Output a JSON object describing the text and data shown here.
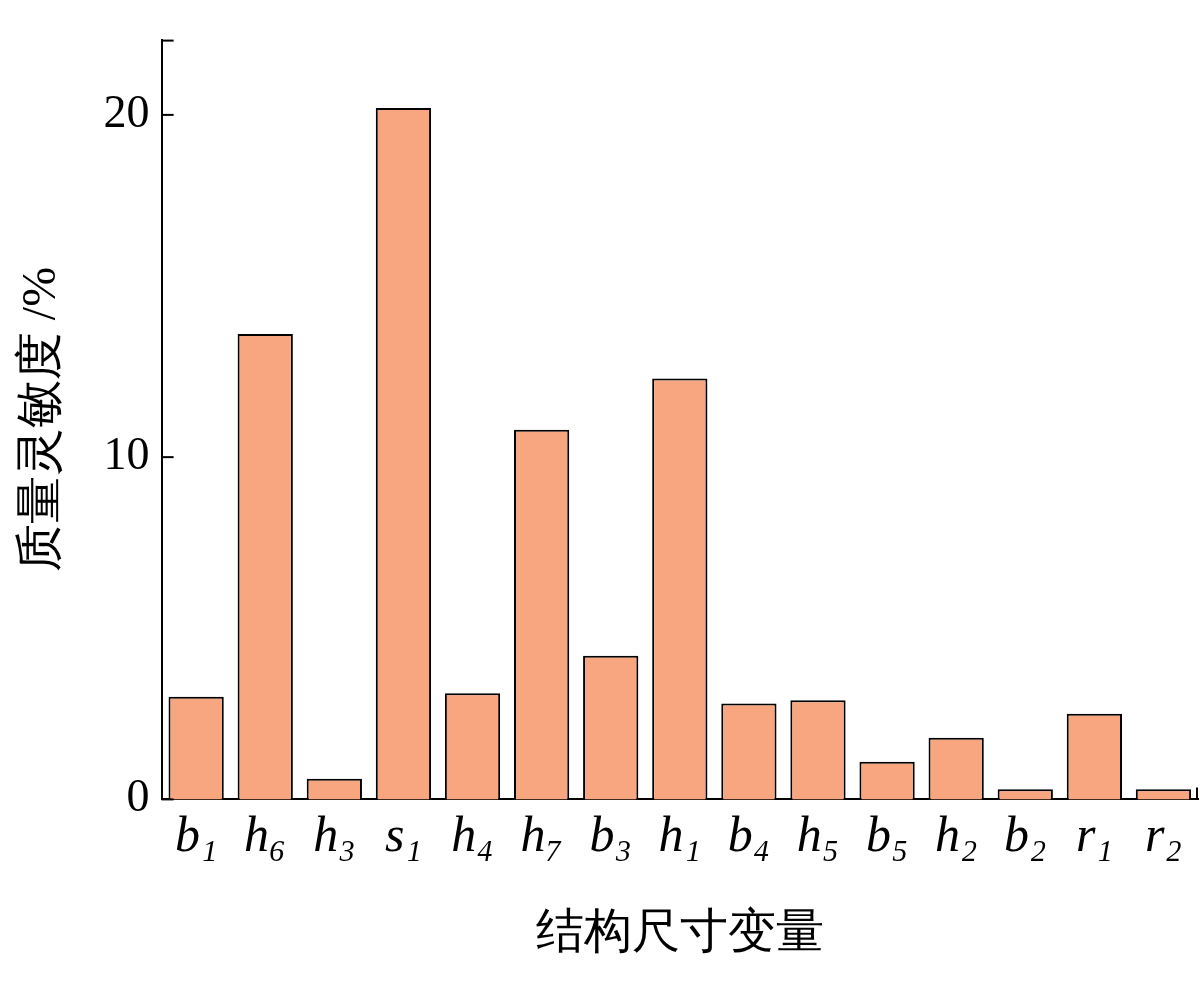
{
  "chart_data": {
    "type": "bar",
    "xlabel": "结构尺寸变量",
    "ylabel": "质量灵敏度 /%",
    "categories": [
      "b₁",
      "h₆",
      "h₃",
      "s₁",
      "h₄",
      "h₇",
      "b₃",
      "h₁",
      "b₄",
      "h₅",
      "b₅",
      "h₂",
      "b₂",
      "r₁",
      "r₂"
    ],
    "values": [
      3.0,
      13.6,
      0.6,
      20.2,
      3.1,
      10.8,
      4.2,
      12.3,
      2.8,
      2.9,
      1.1,
      1.8,
      0.3,
      2.5,
      0.3
    ],
    "color": "#f7a67f",
    "ylim": [
      0,
      22.2
    ],
    "yticks": [
      0,
      10,
      20
    ],
    "grid": false,
    "legend": false
  }
}
